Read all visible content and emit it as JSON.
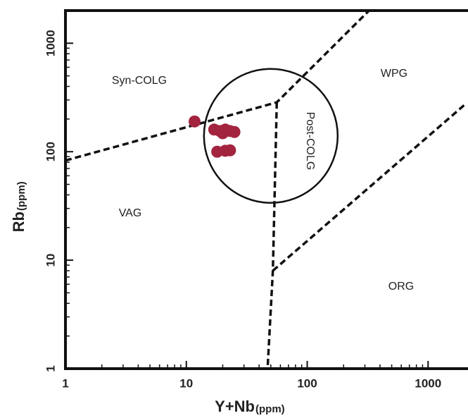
{
  "chart_data": {
    "type": "scatter",
    "x_label": "Y+Nb",
    "x_label_unit": "(ppm)",
    "y_label": "Rb",
    "y_label_unit": "(ppm)",
    "log_x": true,
    "log_y": true,
    "xlim": [
      1,
      2000
    ],
    "ylim": [
      1,
      2000
    ],
    "xticks": [
      1,
      10,
      100,
      1000
    ],
    "yticks": [
      1,
      10,
      100,
      1000
    ],
    "xminorticks": [
      2,
      3,
      4,
      5,
      6,
      7,
      8,
      9,
      20,
      30,
      40,
      50,
      60,
      70,
      80,
      90,
      200,
      300,
      400,
      500,
      600,
      700,
      800,
      900
    ],
    "yminorticks": [
      2,
      3,
      4,
      5,
      6,
      7,
      8,
      9,
      20,
      30,
      40,
      50,
      60,
      70,
      80,
      90,
      200,
      300,
      400,
      500,
      600,
      700,
      800,
      900
    ],
    "point_color": "#a3243f",
    "x": [
      11.7,
      17,
      19,
      21,
      23,
      25,
      20,
      18,
      21,
      23
    ],
    "y": [
      190,
      160,
      155,
      160,
      155,
      152,
      148,
      100,
      102,
      103
    ],
    "boundaries": [
      {
        "x": [
          1,
          56,
          325
        ],
        "y": [
          83,
          285,
          2000
        ]
      },
      {
        "x": [
          56,
          52,
          47
        ],
        "y": [
          285,
          8,
          1
        ]
      },
      {
        "x": [
          52,
          2000
        ],
        "y": [
          8,
          270
        ]
      }
    ],
    "circle_center": {
      "x": 50,
      "y": 140
    },
    "regions": [
      "Syn-COLG",
      "WPG",
      "Post-COLG",
      "VAG",
      "ORG"
    ]
  }
}
